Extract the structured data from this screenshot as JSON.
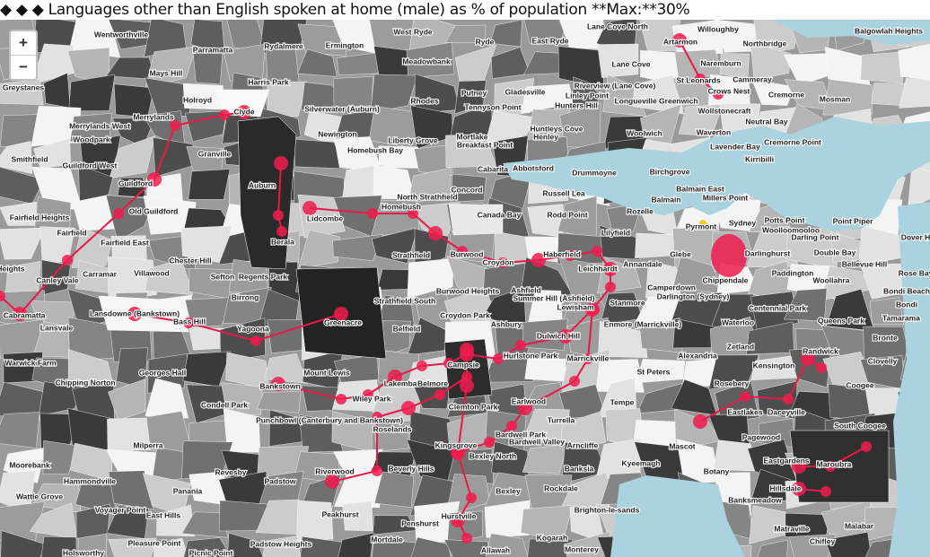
{
  "title": "◆ ◆ ◆ Languages other than English spoken at home (male) as % of population **Max:**30%",
  "controls": [
    "+",
    "−"
  ],
  "labels": [
    "Wentworthville",
    "Parramatta",
    "Rydalmere",
    "Ermington",
    "West Ryde",
    "Ryde",
    "East Ryde",
    "Lane Cove North",
    "Willoughby",
    "Artarmon",
    "Northbridge",
    "Balgowlah Heights",
    "Mays Hill",
    "Harris Park",
    "Meadowbank",
    "Lane Cove",
    "Naremburn",
    "Cammeray",
    "Greystanes",
    "Holroyd",
    "Clyde",
    "Putney",
    "Gladesville",
    "Riverview (Lane Cove)",
    "Linley Point",
    "St Leonards",
    "Crows Nest",
    "Cremorne",
    "Mosman",
    "Merrylands",
    "Silverwater (Auburn)",
    "Rhodes",
    "Tennyson Point",
    "Hunters Hill",
    "Longueville Greenwich",
    "Wollstonecraft",
    "Merrylands West",
    "Neutral Bay",
    "Woodpark",
    "Newington",
    "Liberty Grove",
    "Mortlake",
    "Breakfast Point",
    "Huntleys Cove",
    "Henley",
    "Woolwich",
    "Waverton",
    "Lavender Bay",
    "Cremorne Point",
    "Homebush Bay",
    "Smithfield",
    "Granville",
    "Kirribilli",
    "Guildford West",
    "Cabarita",
    "Abbotsford",
    "Drummoyne",
    "Birchgrove",
    "Auburn",
    "Guildford",
    "Concord",
    "Balmain East",
    "Russell Lea",
    "Millers Point",
    "North Strathfield",
    "Balmain",
    "Homebush",
    "Old Guildford",
    "Canada Bay",
    "Rodd Point",
    "Rozelle",
    "Sydney",
    "Potts Point",
    "Point Piper",
    "Fairfield Heights",
    "Lidcombe",
    "Pyrmont",
    "Woolloomooloo",
    "Fairfield",
    "Lilyfield",
    "Darling Point",
    "Dover H",
    "Berala",
    "Fairfield East",
    "Glebe",
    "Darlinghurst",
    "Double Bay",
    "Strathfield",
    "Burwood",
    "Croydon",
    "Haberfield",
    "Annandale",
    "Chester Hill",
    "Leichhardt",
    "Bellevue Hill",
    "Carramar",
    "Villawood",
    "Sefton",
    "Regents Park",
    "Chippendale",
    "Paddington",
    "Rose Bay",
    "Heights",
    "Canley Vale",
    "Woollahra",
    "Burwood Heights",
    "Ashfield",
    "Camperdown",
    "Bondi Beach",
    "Birrong",
    "Strathfield South",
    "Summer Hill (Ashfield)",
    "Darlington (Sydney)",
    "Stanmore",
    "Lewisham",
    "Cabramatta",
    "Lansdowne (Bankstown)",
    "Croydon Park",
    "Centennial Park",
    "Bondi",
    "Tamarama",
    "Bass Hill",
    "Lansvale",
    "Greenacre",
    "Yagoona",
    "Ashbury",
    "Enmore (Marrickville)",
    "Waterloo",
    "Queens Park",
    "Belfield",
    "Dulwich Hill",
    "Bronte",
    "Zetland",
    "Randwick",
    "Warwick Farm",
    "Hurlstone Park",
    "Marrickville",
    "Alexandria",
    "Clovelly",
    "Kensington",
    "Mount Lewis",
    "Campsie",
    "Georges Hall",
    "St Peters",
    "Chipping Norton",
    "Lakemba",
    "Belmore",
    "Bankstown",
    "Rosebery",
    "Coogee",
    "Wiley Park",
    "Condell Park",
    "Clemton Park",
    "Earlwood",
    "Tempe",
    "Eastlakes",
    "Daceyville",
    "Punchbowl (Canterbury and Bankstown)",
    "Turrella",
    "South Coogee",
    "Roselands",
    "Bardwell Park",
    "Pagewood",
    "Arncliffe",
    "Kingsgrove",
    "Bardwell Valley",
    "Mascot",
    "Milperra",
    "Bexley North",
    "Eastgardens",
    "Maroubra",
    "Moorebank",
    "Kyeemagh",
    "Riverwood",
    "Beverly Hills",
    "Banksia",
    "Revesby",
    "Botany",
    "Hammondville",
    "Padstow",
    "Rockdale",
    "Hillsdale",
    "Bexley",
    "Panania",
    "Wattle Grove",
    "Banksmeadow",
    "Voyager Point",
    "Brighton-le-sands",
    "Peakhurst",
    "Hurstville",
    "East Hills",
    "Penshurst",
    "Matraville",
    "Malabar",
    "Pleasure Point",
    "Padstow Heights",
    "Mortdale",
    "Kogarah",
    "Chifley",
    "Allawah",
    "Holsworthy",
    "Picnic Point",
    "Monterey"
  ]
}
